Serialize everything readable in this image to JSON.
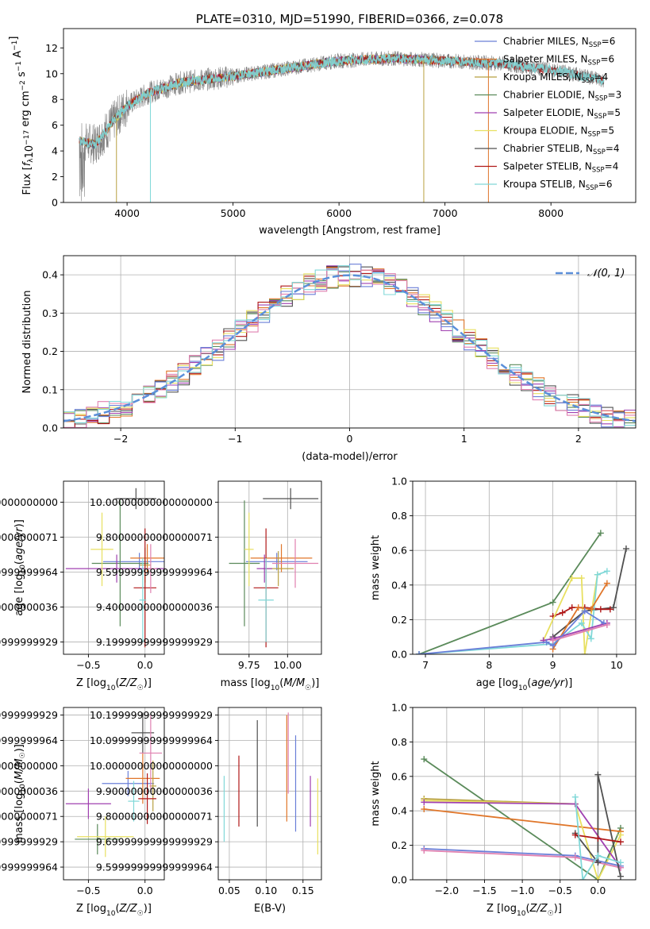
{
  "colors": {
    "chabrier_miles": "#6a7fd8",
    "salpeter_miles": "#e0762a",
    "kroupa_miles": "#b8a040",
    "chabrier_elodie": "#5a8a5a",
    "salpeter_elodie": "#a040b0",
    "kroupa_elodie": "#e8e060",
    "chabrier_stelib": "#505050",
    "salpeter_stelib": "#b01818",
    "kroupa_stelib": "#80d8d8",
    "pink": "#e080b0",
    "gaussian": "#5b8fd9",
    "data": "#808080",
    "grid": "#b0b0b0"
  },
  "chart_data": [
    {
      "id": "spectrum",
      "type": "line",
      "title": "PLATE=0310, MJD=51990, FIBERID=0366, z=0.078",
      "xlabel": "wavelength [Angstrom, rest frame]",
      "ylabel": "Flux [fλ10⁻¹⁷ erg cm⁻² s⁻¹ A⁻¹]",
      "xlim": [
        3400,
        8800
      ],
      "ylim": [
        0,
        13.5
      ],
      "xticks": [
        4000,
        5000,
        6000,
        7000,
        8000
      ],
      "yticks": [
        0,
        2,
        4,
        6,
        8,
        10,
        12
      ],
      "continuum_points": [
        [
          3550,
          4.8
        ],
        [
          3700,
          4.5
        ],
        [
          3900,
          6.6
        ],
        [
          4000,
          7.5
        ],
        [
          4200,
          8.5
        ],
        [
          4500,
          9.3
        ],
        [
          5000,
          9.8
        ],
        [
          5500,
          10.4
        ],
        [
          6000,
          11.0
        ],
        [
          6500,
          11.2
        ],
        [
          7000,
          11.0
        ],
        [
          7500,
          10.8
        ],
        [
          8000,
          10.3
        ],
        [
          8500,
          9.5
        ]
      ],
      "legend_position": "upper right",
      "legend": [
        {
          "label": "Chabrier MILES, N",
          "sub": "SSP",
          "tail": "=6",
          "color_key": "chabrier_miles"
        },
        {
          "label": "Salpeter MILES, N",
          "sub": "SSP",
          "tail": "=6",
          "color_key": "salpeter_miles"
        },
        {
          "label": "Kroupa MILES, N",
          "sub": "SSP",
          "tail": "=4",
          "color_key": "kroupa_miles"
        },
        {
          "label": "Chabrier ELODIE, N",
          "sub": "SSP",
          "tail": "=3",
          "color_key": "chabrier_elodie"
        },
        {
          "label": "Salpeter ELODIE, N",
          "sub": "SSP",
          "tail": "=5",
          "color_key": "salpeter_elodie"
        },
        {
          "label": "Kroupa ELODIE, N",
          "sub": "SSP",
          "tail": "=5",
          "color_key": "kroupa_elodie"
        },
        {
          "label": "Chabrier STELIB, N",
          "sub": "SSP",
          "tail": "=4",
          "color_key": "chabrier_stelib"
        },
        {
          "label": "Salpeter STELIB, N",
          "sub": "SSP",
          "tail": "=4",
          "color_key": "salpeter_stelib"
        },
        {
          "label": "Kroupa STELIB, N",
          "sub": "SSP",
          "tail": "=6",
          "color_key": "kroupa_stelib"
        }
      ]
    },
    {
      "id": "residuals",
      "type": "histogram",
      "xlabel": "(data-model)/error",
      "ylabel": "Normed distribution",
      "xlim": [
        -2.5,
        2.5
      ],
      "ylim": [
        0,
        0.45
      ],
      "xticks": [
        -2,
        -1,
        0,
        1,
        2
      ],
      "yticks": [
        0.0,
        0.1,
        0.2,
        0.3,
        0.4
      ],
      "grid": true,
      "legend": [
        {
          "label": "𝒩(0, 1)",
          "color_key": "gaussian",
          "style": "dashed"
        }
      ],
      "legend_position": "upper right",
      "bin_width": 0.1
    },
    {
      "id": "age_vs_z",
      "type": "errorbar",
      "xlabel": "Z [log10(Z/Z☉)]",
      "ylabel": "age [log10(age/yr)]",
      "xlim": [
        -0.72,
        0.17
      ],
      "ylim": [
        9.13,
        10.12
      ],
      "xticks": [
        -0.5,
        0.0
      ],
      "yticks": [
        9.2,
        9.4,
        9.6,
        9.8,
        10.0
      ],
      "grid": true,
      "points": [
        {
          "x": -0.05,
          "y": 9.66,
          "xerr": 0.32,
          "yerr": 0.05,
          "color_key": "chabrier_miles"
        },
        {
          "x": 0.02,
          "y": 9.68,
          "xerr": 0.15,
          "yerr": 0.08,
          "color_key": "salpeter_miles"
        },
        {
          "x": 0.0,
          "y": 9.64,
          "xerr": 0.05,
          "yerr": 0.1,
          "color_key": "kroupa_miles"
        },
        {
          "x": -0.22,
          "y": 9.65,
          "xerr": 0.25,
          "yerr": 0.36,
          "color_key": "chabrier_elodie"
        },
        {
          "x": -0.25,
          "y": 9.62,
          "xerr": 0.45,
          "yerr": 0.08,
          "color_key": "salpeter_elodie"
        },
        {
          "x": -0.38,
          "y": 9.73,
          "xerr": 0.1,
          "yerr": 0.21,
          "color_key": "kroupa_elodie"
        },
        {
          "x": -0.08,
          "y": 10.02,
          "xerr": 0.18,
          "yerr": 0.06,
          "color_key": "chabrier_stelib"
        },
        {
          "x": 0.0,
          "y": 9.51,
          "xerr": 0.1,
          "yerr": 0.34,
          "color_key": "salpeter_stelib"
        },
        {
          "x": -0.02,
          "y": 9.44,
          "xerr": 0.03,
          "yerr": 0.24,
          "color_key": "kroupa_stelib"
        },
        {
          "x": 0.05,
          "y": 9.62,
          "xerr": 0.05,
          "yerr": 0.14,
          "color_key": "pink"
        }
      ]
    },
    {
      "id": "age_vs_mass",
      "type": "errorbar",
      "xlabel": "mass [log10(M/M☉)]",
      "ylabel": "",
      "xlim": [
        9.55,
        10.22
      ],
      "ylim": [
        9.13,
        10.12
      ],
      "xticks": [
        9.75,
        10.0
      ],
      "yticks": [
        9.2,
        9.4,
        9.6,
        9.8,
        10.0
      ],
      "grid": true,
      "points": [
        {
          "x": 9.93,
          "y": 9.66,
          "xerr": 0.2,
          "yerr": 0.05,
          "color_key": "chabrier_miles"
        },
        {
          "x": 9.96,
          "y": 9.68,
          "xerr": 0.2,
          "yerr": 0.08,
          "color_key": "salpeter_miles"
        },
        {
          "x": 9.94,
          "y": 9.62,
          "xerr": 0.1,
          "yerr": 0.1,
          "color_key": "kroupa_miles"
        },
        {
          "x": 9.72,
          "y": 9.65,
          "xerr": 0.1,
          "yerr": 0.36,
          "color_key": "chabrier_elodie"
        },
        {
          "x": 9.85,
          "y": 9.62,
          "xerr": 0.05,
          "yerr": 0.08,
          "color_key": "salpeter_elodie"
        },
        {
          "x": 9.75,
          "y": 9.73,
          "xerr": 0.03,
          "yerr": 0.21,
          "color_key": "kroupa_elodie"
        },
        {
          "x": 10.02,
          "y": 10.02,
          "xerr": 0.18,
          "yerr": 0.06,
          "color_key": "chabrier_stelib"
        },
        {
          "x": 9.86,
          "y": 9.51,
          "xerr": 0.08,
          "yerr": 0.34,
          "color_key": "salpeter_stelib"
        },
        {
          "x": 9.86,
          "y": 9.44,
          "xerr": 0.05,
          "yerr": 0.24,
          "color_key": "kroupa_stelib"
        },
        {
          "x": 10.05,
          "y": 9.65,
          "xerr": 0.15,
          "yerr": 0.14,
          "color_key": "pink"
        }
      ]
    },
    {
      "id": "mass_weight_vs_age",
      "type": "line",
      "xlabel": "age [log10(age/yr)]",
      "ylabel": "mass weight",
      "xlim": [
        6.8,
        10.3
      ],
      "ylim": [
        0,
        1
      ],
      "xticks": [
        7,
        8,
        9,
        10
      ],
      "yticks": [
        0.0,
        0.2,
        0.4,
        0.6,
        0.8,
        1.0
      ],
      "grid": true,
      "series": [
        {
          "color_key": "chabrier_elodie",
          "x": [
            6.9,
            9.0,
            9.75
          ],
          "y": [
            0.0,
            0.3,
            0.7
          ]
        },
        {
          "color_key": "chabrier_stelib",
          "x": [
            9.0,
            9.5,
            9.95,
            10.15
          ],
          "y": [
            0.1,
            0.25,
            0.27,
            0.61
          ]
        },
        {
          "color_key": "salpeter_stelib",
          "x": [
            9.0,
            9.15,
            9.3,
            9.5,
            9.75,
            9.9
          ],
          "y": [
            0.22,
            0.24,
            0.27,
            0.27,
            0.26,
            0.26
          ]
        },
        {
          "color_key": "kroupa_elodie",
          "x": [
            8.85,
            9.3,
            9.45,
            9.5,
            9.7
          ],
          "y": [
            0.08,
            0.44,
            0.44,
            0.0,
            0.46
          ]
        },
        {
          "color_key": "kroupa_stelib",
          "x": [
            6.9,
            9.0,
            9.45,
            9.6,
            9.7,
            9.85
          ],
          "y": [
            0.0,
            0.06,
            0.18,
            0.09,
            0.46,
            0.48
          ]
        },
        {
          "color_key": "salpeter_miles",
          "x": [
            9.0,
            9.4,
            9.6,
            9.85
          ],
          "y": [
            0.03,
            0.27,
            0.26,
            0.41
          ]
        },
        {
          "color_key": "salpeter_elodie",
          "x": [
            8.85,
            9.0,
            9.85
          ],
          "y": [
            0.08,
            0.09,
            0.18
          ]
        },
        {
          "color_key": "chabrier_miles",
          "x": [
            6.9,
            8.9,
            9.0,
            9.5,
            9.8
          ],
          "y": [
            0.0,
            0.07,
            0.05,
            0.25,
            0.18
          ]
        },
        {
          "color_key": "pink",
          "x": [
            9.0,
            9.85
          ],
          "y": [
            0.08,
            0.17
          ]
        }
      ]
    },
    {
      "id": "mass_vs_z",
      "type": "errorbar",
      "xlabel": "Z [log10(Z/Z☉)]",
      "ylabel": "mass [log10(M/M☉)]",
      "xlim": [
        -0.72,
        0.17
      ],
      "ylim": [
        9.55,
        10.23
      ],
      "xticks": [
        -0.5,
        0.0
      ],
      "yticks": [
        9.6,
        9.7,
        9.8,
        9.9,
        10.0,
        10.1,
        10.2
      ],
      "grid": true,
      "points": [
        {
          "x": -0.15,
          "y": 9.93,
          "xerr": 0.23,
          "yerr": 0.05,
          "color_key": "chabrier_miles"
        },
        {
          "x": -0.02,
          "y": 9.95,
          "xerr": 0.15,
          "yerr": 0.1,
          "color_key": "salpeter_miles"
        },
        {
          "x": 0.07,
          "y": 9.92,
          "xerr": 0.03,
          "yerr": 0.1,
          "color_key": "kroupa_miles"
        },
        {
          "x": -0.42,
          "y": 9.71,
          "xerr": 0.2,
          "yerr": 0.06,
          "color_key": "chabrier_elodie"
        },
        {
          "x": -0.5,
          "y": 9.85,
          "xerr": 0.2,
          "yerr": 0.06,
          "color_key": "salpeter_elodie"
        },
        {
          "x": -0.35,
          "y": 9.72,
          "xerr": 0.25,
          "yerr": 0.08,
          "color_key": "kroupa_elodie"
        },
        {
          "x": -0.02,
          "y": 10.13,
          "xerr": 0.1,
          "yerr": 0.08,
          "color_key": "chabrier_stelib"
        },
        {
          "x": 0.02,
          "y": 9.87,
          "xerr": 0.08,
          "yerr": 0.1,
          "color_key": "salpeter_stelib"
        },
        {
          "x": -0.1,
          "y": 9.86,
          "xerr": 0.05,
          "yerr": 0.08,
          "color_key": "kroupa_stelib"
        },
        {
          "x": 0.05,
          "y": 10.05,
          "xerr": 0.1,
          "yerr": 0.15,
          "color_key": "pink"
        }
      ]
    },
    {
      "id": "mass_vs_ebv",
      "type": "errorbar",
      "xlabel": "E(B-V)",
      "ylabel": "",
      "xlim": [
        0.035,
        0.175
      ],
      "ylim": [
        9.55,
        10.23
      ],
      "xticks": [
        0.05,
        0.1,
        0.15
      ],
      "yticks": [
        9.6,
        9.7,
        9.8,
        9.9,
        10.0,
        10.1,
        10.2
      ],
      "grid": true,
      "points": [
        {
          "x": 0.043,
          "y": 9.83,
          "yerr": 0.13,
          "color_key": "kroupa_stelib"
        },
        {
          "x": 0.063,
          "y": 9.9,
          "yerr": 0.14,
          "color_key": "salpeter_stelib"
        },
        {
          "x": 0.088,
          "y": 9.97,
          "yerr": 0.21,
          "color_key": "chabrier_stelib"
        },
        {
          "x": 0.128,
          "y": 9.99,
          "yerr": 0.21,
          "color_key": "salpeter_miles"
        },
        {
          "x": 0.13,
          "y": 10.05,
          "yerr": 0.16,
          "color_key": "pink"
        },
        {
          "x": 0.14,
          "y": 9.93,
          "yerr": 0.19,
          "color_key": "chabrier_miles"
        },
        {
          "x": 0.16,
          "y": 9.86,
          "yerr": 0.1,
          "color_key": "salpeter_elodie"
        },
        {
          "x": 0.17,
          "y": 9.8,
          "yerr": 0.15,
          "color_key": "kroupa_elodie"
        }
      ]
    },
    {
      "id": "mass_weight_vs_z",
      "type": "line",
      "xlabel": "Z [log10(Z/Z☉)]",
      "ylabel": "mass weight",
      "xlim": [
        -2.45,
        0.5
      ],
      "ylim": [
        0,
        1
      ],
      "xticks": [
        -2.0,
        -1.5,
        -1.0,
        -0.5,
        0.0
      ],
      "yticks": [
        0.0,
        0.2,
        0.4,
        0.6,
        0.8,
        1.0
      ],
      "grid": true,
      "series": [
        {
          "color_key": "chabrier_elodie",
          "x": [
            -2.3,
            0.0,
            0.3
          ],
          "y": [
            0.7,
            0.0,
            0.3
          ]
        },
        {
          "color_key": "salpeter_miles",
          "x": [
            -2.3,
            0.3
          ],
          "y": [
            0.41,
            0.28
          ]
        },
        {
          "color_key": "kroupa_miles",
          "x": [
            -2.3,
            -0.3
          ],
          "y": [
            0.47,
            0.44
          ]
        },
        {
          "color_key": "kroupa_elodie",
          "x": [
            -2.3,
            -0.3,
            0.0,
            0.3
          ],
          "y": [
            0.46,
            0.44,
            0.0,
            0.26
          ]
        },
        {
          "color_key": "salpeter_elodie",
          "x": [
            -2.3,
            -0.3,
            0.3
          ],
          "y": [
            0.45,
            0.44,
            0.07
          ]
        },
        {
          "color_key": "chabrier_miles",
          "x": [
            -2.3,
            -0.3,
            0.3
          ],
          "y": [
            0.18,
            0.14,
            0.08
          ]
        },
        {
          "color_key": "pink",
          "x": [
            -2.3,
            -0.3,
            0.3
          ],
          "y": [
            0.17,
            0.13,
            0.07
          ]
        },
        {
          "color_key": "chabrier_stelib",
          "x": [
            -0.3,
            0.0,
            0.0,
            0.3
          ],
          "y": [
            0.27,
            0.1,
            0.61,
            0.02
          ]
        },
        {
          "color_key": "salpeter_stelib",
          "x": [
            -0.3,
            0.0,
            0.3
          ],
          "y": [
            0.26,
            0.24,
            0.22
          ]
        },
        {
          "color_key": "kroupa_stelib",
          "x": [
            -0.3,
            -0.2,
            0.0,
            0.3
          ],
          "y": [
            0.48,
            0.0,
            0.14,
            0.1
          ]
        }
      ]
    }
  ]
}
